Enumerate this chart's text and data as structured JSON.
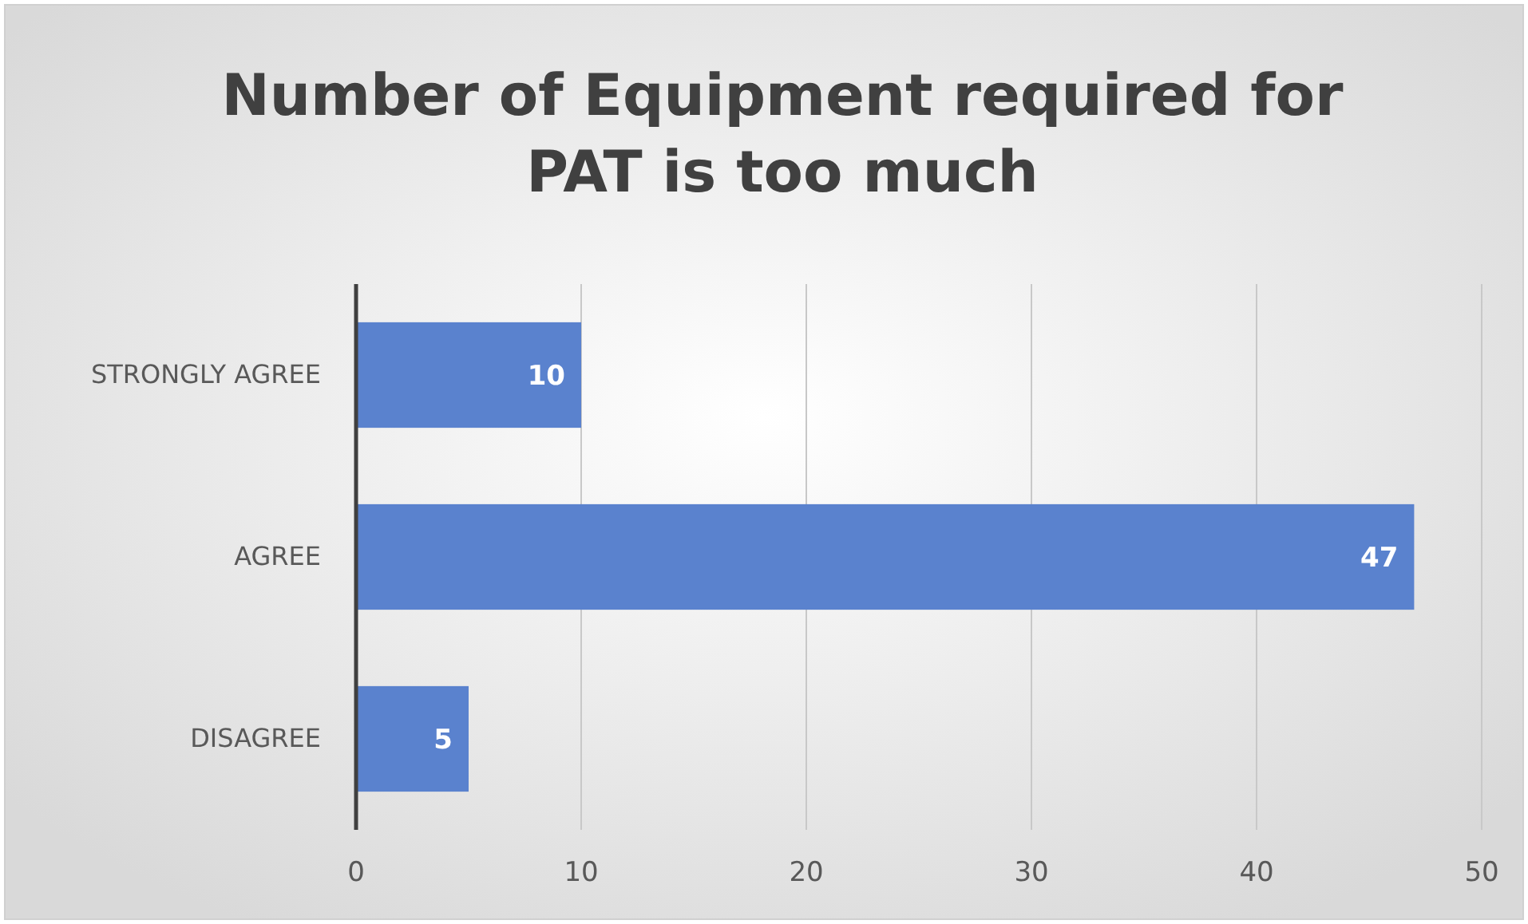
{
  "chart_data": {
    "type": "bar",
    "orientation": "horizontal",
    "title": "Number of Equipment required for PAT is too much",
    "categories": [
      "STRONGLY AGREE",
      "AGREE",
      "DISAGREE"
    ],
    "values": [
      10,
      47,
      5
    ],
    "color": "#5a82ce",
    "xlim": [
      0,
      50
    ],
    "xticks": [
      0,
      10,
      20,
      30,
      40,
      50
    ],
    "grid": "x",
    "data_labels": true
  }
}
